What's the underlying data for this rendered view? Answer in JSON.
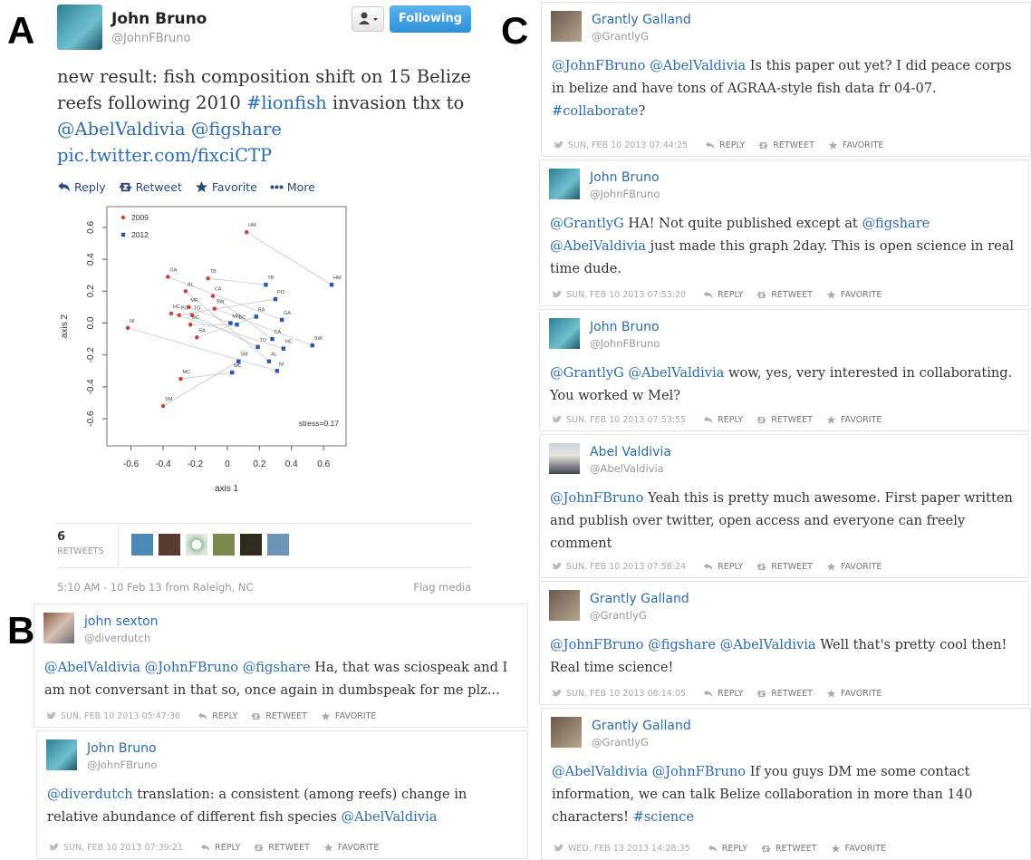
{
  "panel_labels": [
    "A",
    "B",
    "C"
  ],
  "main_tweet": {
    "name": "John Bruno",
    "handle": "@JohnFBruno",
    "follow_button": "Following",
    "text": [
      "new result: fish composition shift on 15 Belize reefs following 2010 ",
      {
        "link": "#lionfish"
      },
      " invasion thx to ",
      {
        "link": "@AbelValdivia"
      },
      " ",
      {
        "link": "@figshare"
      },
      " ",
      {
        "link": "pic.twitter.com/fixciCTP"
      }
    ],
    "actions": [
      "Reply",
      "Retweet",
      "Favorite",
      "More"
    ],
    "retweets": {
      "count": 6,
      "label": "RETWEETS"
    },
    "timestamp": "5:10 AM - 10 Feb 13 from Raleigh, NC",
    "flag": "Flag media"
  },
  "chart_data": {
    "type": "scatter",
    "xlabel": "axis 1",
    "ylabel": "axis 2",
    "annotation": "stress=0.17",
    "xlim": [
      -0.75,
      0.74
    ],
    "ylim": [
      -0.77,
      0.73
    ],
    "xticks": [
      -0.6,
      -0.4,
      -0.2,
      0,
      0.2,
      0.4,
      0.6
    ],
    "yticks": [
      -0.6,
      -0.4,
      -0.2,
      {
        "value": 0,
        "label": "0.0"
      },
      0.2,
      0.4,
      0.6
    ],
    "legend": "upper left",
    "series": [
      {
        "name": "2009",
        "color": "#d63b2a",
        "labels": [
          "HM",
          "GA",
          "TB",
          "AL",
          "CA",
          "MR",
          "SW",
          "HC",
          "PO",
          "TO",
          "BC",
          "NI",
          "RA",
          "MC",
          "SM"
        ],
        "x": [
          0.12,
          -0.37,
          -0.12,
          -0.26,
          -0.09,
          -0.24,
          -0.08,
          -0.35,
          -0.3,
          -0.22,
          -0.23,
          -0.62,
          -0.19,
          -0.29,
          -0.4
        ],
        "y": [
          0.57,
          0.29,
          0.28,
          0.2,
          0.17,
          0.1,
          0.09,
          0.06,
          0.05,
          0.05,
          -0.01,
          -0.03,
          -0.09,
          -0.35,
          -0.52
        ]
      },
      {
        "name": "2012",
        "color": "#2656b8",
        "labels": [
          "HM",
          "TB",
          "PO",
          "GA",
          "RA",
          "MR",
          "BC",
          "CA",
          "TO",
          "HC",
          "SW",
          "AL",
          "NI",
          "SM",
          "MC"
        ],
        "x": [
          0.65,
          0.24,
          0.3,
          0.34,
          0.18,
          0.02,
          0.06,
          0.28,
          0.19,
          0.35,
          0.53,
          0.26,
          0.31,
          0.07,
          0.03
        ],
        "y": [
          0.24,
          0.24,
          0.15,
          0.02,
          0.04,
          0.0,
          -0.01,
          -0.1,
          -0.15,
          -0.16,
          -0.14,
          -0.24,
          -0.3,
          -0.24,
          -0.31
        ]
      }
    ]
  },
  "reply_actions": [
    "REPLY",
    "RETWEET",
    "FAVORITE"
  ],
  "tweets_b": [
    {
      "name": "john sexton",
      "handle": "@diverdutch",
      "text": [
        {
          "link": "@AbelValdivia"
        },
        " ",
        {
          "link": "@JohnFBruno"
        },
        " ",
        {
          "link": "@figshare"
        },
        " Ha, that was sciospeak and I am not conversant in that so, once again in dumbspeak for me plz..."
      ],
      "timestamp": "SUN, FEB 10 2013 05:47:30"
    },
    {
      "name": "John Bruno",
      "handle": "@JohnFBruno",
      "text": [
        {
          "link": "@diverdutch"
        },
        " translation: a consistent (among reefs) change in relative abundance of different fish species ",
        {
          "link": "@AbelValdivia"
        }
      ],
      "timestamp": "SUN, FEB 10 2013 07:39:21"
    }
  ],
  "tweets_c": [
    {
      "name": "Grantly Galland",
      "handle": "@GrantlyG",
      "text": [
        {
          "link": "@JohnFBruno"
        },
        " ",
        {
          "link": "@AbelValdivia"
        },
        " Is this paper out yet? I did peace corps in belize and have tons of AGRAA-style fish data fr 04-07. ",
        {
          "link": "#collaborate"
        },
        "?"
      ],
      "timestamp": "SUN, FEB 10 2013 07:44:25"
    },
    {
      "name": "John Bruno",
      "handle": "@JohnFBruno",
      "text": [
        {
          "link": "@GrantlyG"
        },
        " HA! Not quite published except at ",
        {
          "link": "@figshare"
        },
        " ",
        {
          "link": "@AbelValdivia"
        },
        " just made this graph 2day. This is open science in real time dude."
      ],
      "timestamp": "SUN, FEB 10 2013 07:53:20"
    },
    {
      "name": "John Bruno",
      "handle": "@JohnFBruno",
      "text": [
        {
          "link": "@GrantlyG"
        },
        " ",
        {
          "link": "@AbelValdivia"
        },
        " wow, yes, very interested in collaborating. You worked w Mel?"
      ],
      "timestamp": "SUN, FEB 10 2013 07:53:55"
    },
    {
      "name": "Abel Valdivia",
      "handle": "@AbelValdivia",
      "text": [
        {
          "link": "@JohnFBruno"
        },
        " Yeah this is pretty much awesome. First paper written and publish over twitter, open access and everyone can freely comment"
      ],
      "timestamp": "SUN, FEB 10 2013 07:58:24"
    },
    {
      "name": "Grantly Galland",
      "handle": "@GrantlyG",
      "text": [
        {
          "link": "@JohnFBruno"
        },
        " ",
        {
          "link": "@figshare"
        },
        " ",
        {
          "link": "@AbelValdivia"
        },
        " Well that's pretty cool then! Real time science!"
      ],
      "timestamp": "SUN, FEB 10 2013 08:14:05"
    },
    {
      "name": "Grantly Galland",
      "handle": "@GrantlyG",
      "text": [
        {
          "link": "@AbelValdivia"
        },
        " ",
        {
          "link": "@JohnFBruno"
        },
        " If you guys DM me some contact information, we can talk Belize collaboration in more than 140 characters! ",
        {
          "link": "#science"
        }
      ],
      "timestamp": "WED, FEB 13 2013 14:28:35"
    }
  ]
}
